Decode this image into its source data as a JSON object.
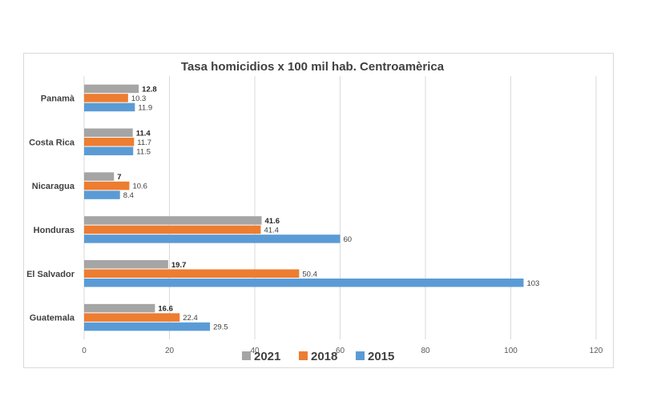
{
  "chart_data": {
    "type": "bar",
    "orientation": "horizontal",
    "title": "Tasa homicidios x 100 mil hab. Centroamèrica",
    "categories": [
      "Panamà",
      "Costa Rica",
      "Nicaragua",
      "Honduras",
      "El Salvador",
      "Guatemala"
    ],
    "series": [
      {
        "name": "2021",
        "color": "#a5a5a5",
        "values": [
          12.8,
          11.4,
          7,
          41.6,
          19.7,
          16.6
        ],
        "labels": [
          "12.8",
          "11.4",
          "7",
          "41.6",
          "19.7",
          "16.6"
        ],
        "label_bold": true
      },
      {
        "name": "2018",
        "color": "#ed7d31",
        "values": [
          10.3,
          11.7,
          10.6,
          41.4,
          50.4,
          22.4
        ],
        "labels": [
          "10.3",
          "11.7",
          "10.6",
          "41.4",
          "50.4",
          "22.4"
        ],
        "label_bold": false
      },
      {
        "name": "2015",
        "color": "#5b9bd5",
        "values": [
          11.9,
          11.5,
          8.4,
          60,
          103,
          29.5
        ],
        "labels": [
          "11.9",
          "11.5",
          "8.4",
          "60",
          "103",
          "29.5"
        ],
        "label_bold": false
      }
    ],
    "xlim": [
      0,
      120
    ],
    "xticks": [
      0,
      20,
      40,
      60,
      80,
      100,
      120
    ],
    "xtick_labels": [
      "0",
      "20",
      "40",
      "60",
      "80",
      "100",
      "120"
    ],
    "grid": true,
    "legend_position": "bottom",
    "legend_order": [
      "2021",
      "2018",
      "2015"
    ]
  }
}
